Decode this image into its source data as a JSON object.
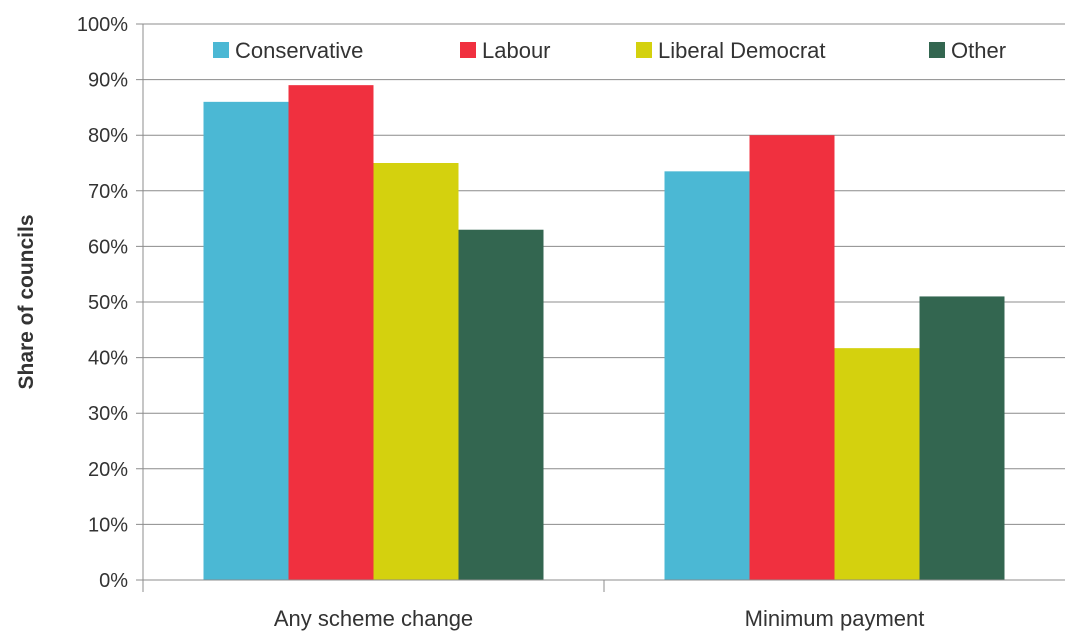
{
  "chart_data": {
    "type": "bar",
    "title": "",
    "xlabel": "",
    "ylabel": "Share of councils",
    "ylim": [
      0,
      100
    ],
    "yticks": [
      "0%",
      "10%",
      "20%",
      "30%",
      "40%",
      "50%",
      "60%",
      "70%",
      "80%",
      "90%",
      "100%"
    ],
    "grid": true,
    "legend_position": "top",
    "categories": [
      "Any scheme change",
      "Minimum payment"
    ],
    "series": [
      {
        "name": "Conservative",
        "color": "#4bb8d4",
        "values": [
          86,
          73.5
        ]
      },
      {
        "name": "Labour",
        "color": "#f0303f",
        "values": [
          89,
          80
        ]
      },
      {
        "name": "Liberal Democrat",
        "color": "#d4d10e",
        "values": [
          75,
          41.7
        ]
      },
      {
        "name": "Other",
        "color": "#336650",
        "values": [
          63,
          51
        ]
      }
    ]
  }
}
